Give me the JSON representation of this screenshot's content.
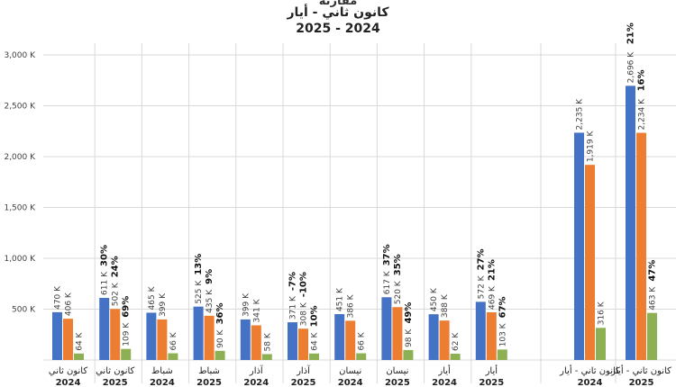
{
  "title": {
    "line1": "مقارنة",
    "line2": "كانون ثاني - أيار",
    "line3": "2025 - 2024"
  },
  "colors": {
    "blue": "#4472C4",
    "orange": "#ED7D31",
    "green": "#8DB054",
    "grid": "#D9D9D9",
    "text": "#404040"
  },
  "chart_data": {
    "type": "bar",
    "title": "كانون ثاني - أيار 2025 - 2024",
    "ylim": [
      0,
      3000
    ],
    "yticks": [
      "3,000 K",
      "2,500 K",
      "2,000 K",
      "1,500 K",
      "1,000 K",
      "500 K"
    ],
    "ytick_values": [
      3000,
      2500,
      2000,
      1500,
      1000,
      500
    ],
    "grid": true,
    "legend": "none",
    "groups": [
      {
        "label": "كانون ثاني",
        "year": "2024",
        "values": [
          470,
          406,
          64
        ],
        "labels": [
          "470 K",
          "406 K",
          "64 K"
        ],
        "pct": []
      },
      {
        "label": "كانون ثاني",
        "year": "2025",
        "values": [
          611,
          502,
          109
        ],
        "labels": [
          "611 K",
          "502 K",
          "109 K"
        ],
        "pct": [
          "30%",
          "24%",
          "69%"
        ]
      },
      {
        "label": "شباط",
        "year": "2024",
        "values": [
          465,
          399,
          66
        ],
        "labels": [
          "465 K",
          "399 K",
          "66 K"
        ],
        "pct": []
      },
      {
        "label": "شباط",
        "year": "2025",
        "values": [
          525,
          435,
          90
        ],
        "labels": [
          "525 K",
          "435 K",
          "90 K"
        ],
        "pct": [
          "13%",
          "9%",
          "36%"
        ]
      },
      {
        "label": "آذار",
        "year": "2024",
        "values": [
          399,
          341,
          58
        ],
        "labels": [
          "399 K",
          "341 K",
          "58 K"
        ],
        "pct": []
      },
      {
        "label": "آذار",
        "year": "2025",
        "values": [
          371,
          308,
          64
        ],
        "labels": [
          "371 K",
          "308 K",
          "64 K"
        ],
        "pct": [
          "-7%",
          "-10%",
          "10%"
        ]
      },
      {
        "label": "نيسان",
        "year": "2024",
        "values": [
          451,
          386,
          66
        ],
        "labels": [
          "451 K",
          "386 K",
          "66 K"
        ],
        "pct": []
      },
      {
        "label": "نيسان",
        "year": "2025",
        "values": [
          617,
          520,
          98
        ],
        "labels": [
          "617 K",
          "520 K",
          "98 K"
        ],
        "pct": [
          "37%",
          "35%",
          "49%"
        ]
      },
      {
        "label": "أيار",
        "year": "2024",
        "values": [
          450,
          388,
          62
        ],
        "labels": [
          "450 K",
          "388 K",
          "62 K"
        ],
        "pct": []
      },
      {
        "label": "أيار",
        "year": "2025",
        "values": [
          572,
          469,
          103
        ],
        "labels": [
          "572 K",
          "469 K",
          "103 K"
        ],
        "pct": [
          "27%",
          "21%",
          "67%"
        ]
      },
      {
        "label": "كانون ثاني - أيار",
        "year": "2024",
        "values": [
          2235,
          1919,
          316
        ],
        "labels": [
          "2,235 K",
          "1,919 K",
          "316 K"
        ],
        "pct": []
      },
      {
        "label": "كانون ثاني - أيار",
        "year": "2025",
        "values": [
          2696,
          2234,
          463
        ],
        "labels": [
          "2,696 K",
          "2,234 K",
          "463 K"
        ],
        "pct": [
          "21%",
          "16%",
          "47%"
        ]
      }
    ]
  }
}
